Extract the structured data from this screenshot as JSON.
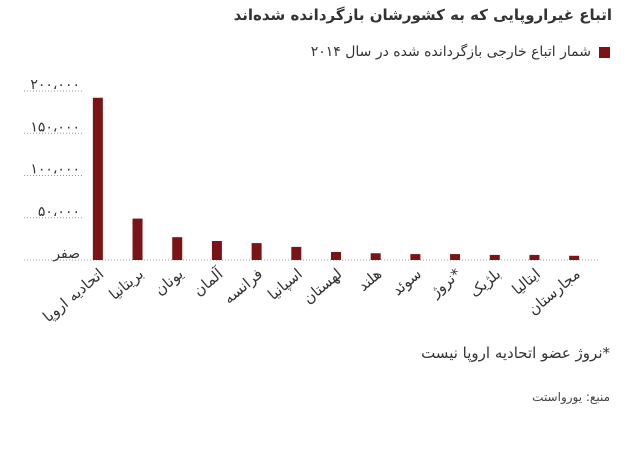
{
  "title": "اتباع غیراروپایی که به کشورشان بازگردانده شده‌اند",
  "note": "*نروژ عضو اتحادیه اروپا نیست",
  "source": "منبع: یورواستت",
  "chart_data": {
    "type": "bar",
    "categories": [
      "اتحادیه اروپا",
      "بریتانیا",
      "یونان",
      "آلمان",
      "فرانسه",
      "اسپانیا",
      "لهستان",
      "هلند",
      "سوئد",
      "نروژ*",
      "بلژیک",
      "ایتالیا",
      "مجارستان"
    ],
    "series": [
      {
        "name": "شمار اتباع خارجی بازگردانده شده در سال ۲۰۱۴",
        "color": "#7b1416",
        "values": [
          192000,
          49000,
          27000,
          22500,
          20000,
          15500,
          9500,
          8000,
          7000,
          7000,
          6000,
          6000,
          5000
        ]
      }
    ],
    "ylim": [
      0,
      200000
    ],
    "yticks": [
      {
        "value": 0,
        "label": "صفر"
      },
      {
        "value": 50000,
        "label": "۵۰،۰۰۰"
      },
      {
        "value": 100000,
        "label": "۱۰۰،۰۰۰"
      },
      {
        "value": 150000,
        "label": "۱۵۰،۰۰۰"
      },
      {
        "value": 200000,
        "label": "۲۰۰،۰۰۰"
      }
    ],
    "grid": true
  }
}
